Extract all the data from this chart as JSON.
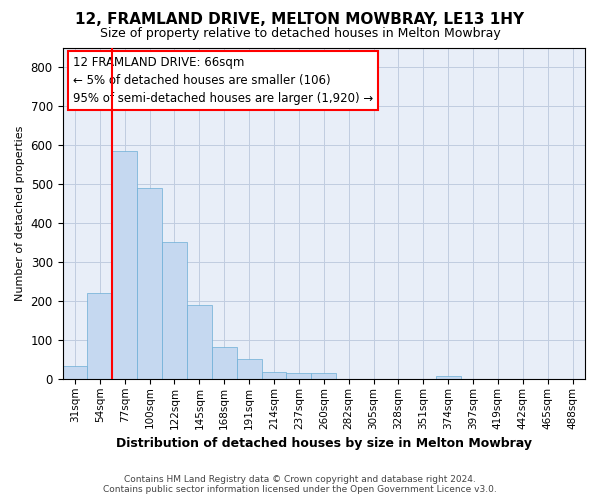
{
  "title": "12, FRAMLAND DRIVE, MELTON MOWBRAY, LE13 1HY",
  "subtitle": "Size of property relative to detached houses in Melton Mowbray",
  "xlabel": "Distribution of detached houses by size in Melton Mowbray",
  "ylabel": "Number of detached properties",
  "categories": [
    "31sqm",
    "54sqm",
    "77sqm",
    "100sqm",
    "122sqm",
    "145sqm",
    "168sqm",
    "191sqm",
    "214sqm",
    "237sqm",
    "260sqm",
    "282sqm",
    "305sqm",
    "328sqm",
    "351sqm",
    "374sqm",
    "397sqm",
    "419sqm",
    "442sqm",
    "465sqm",
    "488sqm"
  ],
  "values": [
    32,
    220,
    585,
    490,
    350,
    190,
    83,
    52,
    18,
    15,
    15,
    0,
    0,
    0,
    0,
    8,
    0,
    0,
    0,
    0,
    0
  ],
  "bar_color": "#c5d8f0",
  "bar_edge_color": "#6baed6",
  "ylim": [
    0,
    850
  ],
  "yticks": [
    0,
    100,
    200,
    300,
    400,
    500,
    600,
    700,
    800
  ],
  "vline_x": 1.5,
  "annotation_title": "12 FRAMLAND DRIVE: 66sqm",
  "annotation_line1": "← 5% of detached houses are smaller (106)",
  "annotation_line2": "95% of semi-detached houses are larger (1,920) →",
  "footer1": "Contains HM Land Registry data © Crown copyright and database right 2024.",
  "footer2": "Contains public sector information licensed under the Open Government Licence v3.0.",
  "bg_color": "#e8eef8",
  "grid_color": "#c0cce0",
  "title_fontsize": 11,
  "subtitle_fontsize": 9,
  "xlabel_fontsize": 9,
  "ylabel_fontsize": 8,
  "annotation_fontsize": 8.5
}
